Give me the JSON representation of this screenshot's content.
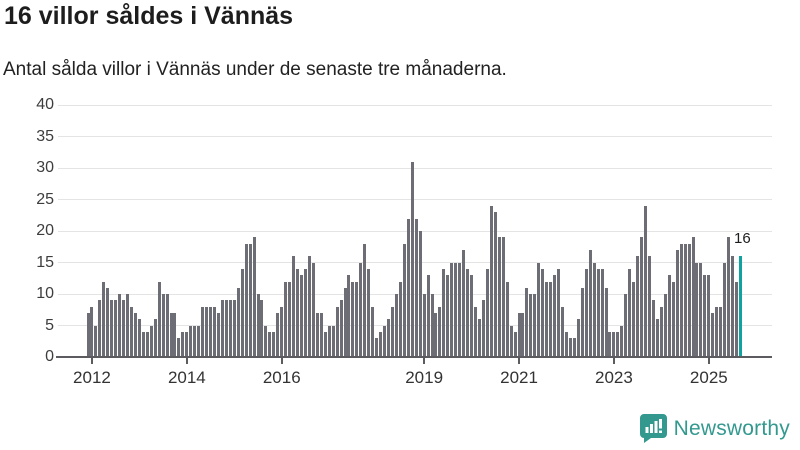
{
  "header": {
    "title": "16 villor såldes i Vännäs",
    "subtitle": "Antal sålda villor i Vännäs under de senaste tre månaderna."
  },
  "chart_data": {
    "type": "bar",
    "title": "16 villor såldes i Vännäs",
    "subtitle": "Antal sålda villor i Vännäs under de senaste tre månaderna.",
    "ylim": [
      0,
      40
    ],
    "yticks": [
      0,
      5,
      10,
      15,
      20,
      25,
      30,
      35,
      40
    ],
    "grid": true,
    "x_ticks": [
      {
        "label": "2012",
        "index": 1
      },
      {
        "label": "2014",
        "index": 25
      },
      {
        "label": "2016",
        "index": 49
      },
      {
        "label": "2019",
        "index": 85
      },
      {
        "label": "2021",
        "index": 109
      },
      {
        "label": "2023",
        "index": 133
      },
      {
        "label": "2025",
        "index": 157
      }
    ],
    "values": [
      7,
      8,
      5,
      9,
      12,
      11,
      9,
      9,
      10,
      9,
      10,
      8,
      7,
      6,
      4,
      4,
      5,
      6,
      12,
      10,
      10,
      7,
      7,
      3,
      4,
      4,
      5,
      5,
      5,
      8,
      8,
      8,
      8,
      7,
      9,
      9,
      9,
      9,
      11,
      14,
      18,
      18,
      19,
      10,
      9,
      5,
      4,
      4,
      7,
      8,
      12,
      12,
      16,
      14,
      13,
      14,
      16,
      15,
      7,
      7,
      4,
      5,
      5,
      8,
      9,
      11,
      13,
      12,
      12,
      15,
      18,
      14,
      8,
      3,
      4,
      5,
      6,
      8,
      10,
      12,
      18,
      22,
      31,
      22,
      20,
      10,
      13,
      10,
      7,
      8,
      14,
      13,
      15,
      15,
      15,
      17,
      14,
      13,
      8,
      6,
      9,
      14,
      24,
      23,
      19,
      19,
      12,
      5,
      4,
      7,
      7,
      11,
      10,
      10,
      15,
      14,
      12,
      12,
      13,
      14,
      8,
      4,
      3,
      3,
      6,
      11,
      14,
      17,
      15,
      14,
      14,
      11,
      4,
      4,
      4,
      5,
      10,
      14,
      12,
      16,
      19,
      24,
      16,
      9,
      6,
      8,
      10,
      13,
      12,
      17,
      18,
      18,
      18,
      19,
      15,
      15,
      13,
      13,
      7,
      8,
      8,
      15,
      19,
      16,
      12,
      16
    ],
    "highlight_index": 165,
    "highlight_label": "16",
    "bar_color": "#6d6d76",
    "highlight_color": "#10a2a0",
    "gridline_color": "#e4e4e4",
    "axis_color": "#5b5b60"
  },
  "branding": {
    "logo_text": "Newsworthy",
    "brand_color": "#33998f"
  }
}
